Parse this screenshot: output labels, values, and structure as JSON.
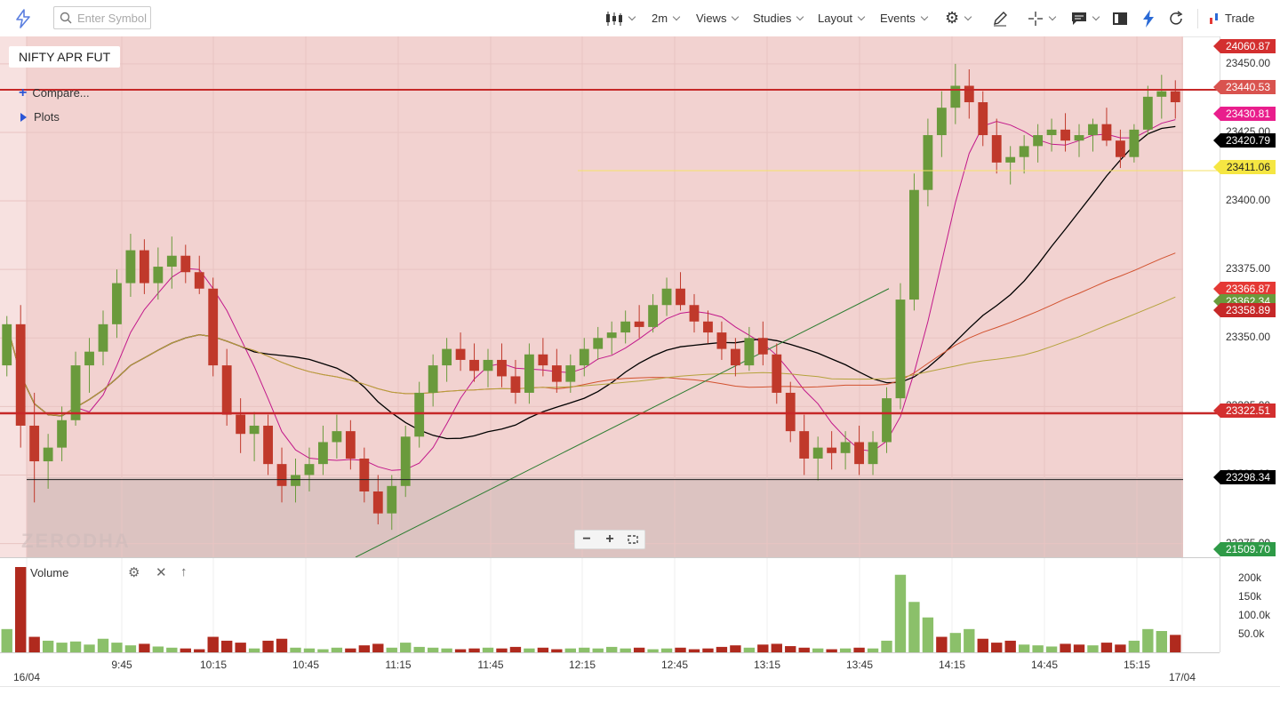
{
  "toolbar": {
    "search_placeholder": "Enter Symbol",
    "interval": "2m",
    "views": "Views",
    "studies": "Studies",
    "layout": "Layout",
    "events": "Events",
    "trade": "Trade"
  },
  "legend": {
    "symbol": "NIFTY APR FUT",
    "compare": "Compare...",
    "plots": "Plots"
  },
  "volume_pane": {
    "label": "Volume"
  },
  "watermark": "ZERODHA",
  "price_axis": {
    "ticks": [
      "23450.00",
      "23425.00",
      "23400.00",
      "23375.00",
      "23350.00",
      "23325.00",
      "23300.00",
      "23275.00"
    ],
    "tags": [
      {
        "label": "24060.87",
        "color": "#d32f2f"
      },
      {
        "label": "23440.53",
        "color": "#d9534f"
      },
      {
        "label": "23430.81",
        "color": "#e91e8c"
      },
      {
        "label": "23420.79",
        "color": "#000000"
      },
      {
        "label": "23411.06",
        "color": "#f5e642"
      },
      {
        "label": "23366.87",
        "color": "#e53935"
      },
      {
        "label": "23362.34",
        "color": "#6a9a3c"
      },
      {
        "label": "23358.89",
        "color": "#c62828"
      },
      {
        "label": "23322.51",
        "color": "#d32f2f"
      },
      {
        "label": "23298.34",
        "color": "#000000"
      },
      {
        "label": "21509.70",
        "color": "#2e9a47"
      }
    ]
  },
  "volume_axis": {
    "ticks": [
      "200k",
      "150k",
      "100.0k",
      "50.0k"
    ]
  },
  "time_axis": {
    "labels": [
      "16/04",
      "9:45",
      "10:15",
      "10:45",
      "11:15",
      "11:45",
      "12:15",
      "12:45",
      "13:15",
      "13:45",
      "14:15",
      "14:45",
      "15:15",
      "17/04"
    ]
  },
  "icons": {
    "logo": "lightning-logo-icon",
    "chart_type": "candles-icon",
    "settings": "gear-icon",
    "draw": "pencil-icon",
    "crosshair": "crosshair-icon",
    "alerts": "comment-icon",
    "panel": "panel-icon",
    "flash": "lightning-icon",
    "refresh": "refresh-icon"
  },
  "chart_data": {
    "type": "candlestick",
    "ylim": [
      23270,
      23460
    ],
    "bullish_color": "#6a9a3c",
    "bearish_color": "#c0392b",
    "ohlc": [
      [
        23340,
        23358,
        23336,
        23355
      ],
      [
        23355,
        23362,
        23310,
        23318
      ],
      [
        23318,
        23330,
        23290,
        23305
      ],
      [
        23305,
        23315,
        23295,
        23310
      ],
      [
        23310,
        23325,
        23305,
        23320
      ],
      [
        23320,
        23345,
        23318,
        23340
      ],
      [
        23340,
        23350,
        23330,
        23345
      ],
      [
        23345,
        23360,
        23340,
        23355
      ],
      [
        23355,
        23375,
        23350,
        23370
      ],
      [
        23370,
        23388,
        23365,
        23382
      ],
      [
        23382,
        23386,
        23366,
        23370
      ],
      [
        23370,
        23383,
        23364,
        23376
      ],
      [
        23376,
        23387,
        23368,
        23380
      ],
      [
        23380,
        23384,
        23370,
        23374
      ],
      [
        23374,
        23380,
        23366,
        23368
      ],
      [
        23368,
        23372,
        23336,
        23340
      ],
      [
        23340,
        23346,
        23318,
        23322
      ],
      [
        23322,
        23328,
        23308,
        23315
      ],
      [
        23315,
        23323,
        23305,
        23318
      ],
      [
        23318,
        23322,
        23300,
        23304
      ],
      [
        23304,
        23310,
        23290,
        23296
      ],
      [
        23296,
        23306,
        23290,
        23300
      ],
      [
        23300,
        23310,
        23294,
        23304
      ],
      [
        23304,
        23318,
        23300,
        23312
      ],
      [
        23312,
        23322,
        23306,
        23316
      ],
      [
        23316,
        23320,
        23302,
        23306
      ],
      [
        23306,
        23310,
        23290,
        23294
      ],
      [
        23294,
        23300,
        23282,
        23286
      ],
      [
        23286,
        23300,
        23280,
        23296
      ],
      [
        23296,
        23318,
        23292,
        23314
      ],
      [
        23314,
        23334,
        23310,
        23330
      ],
      [
        23330,
        23344,
        23325,
        23340
      ],
      [
        23340,
        23350,
        23334,
        23346
      ],
      [
        23346,
        23352,
        23338,
        23342
      ],
      [
        23342,
        23348,
        23334,
        23338
      ],
      [
        23338,
        23346,
        23332,
        23342
      ],
      [
        23342,
        23348,
        23332,
        23336
      ],
      [
        23336,
        23342,
        23326,
        23330
      ],
      [
        23330,
        23348,
        23326,
        23344
      ],
      [
        23344,
        23350,
        23336,
        23340
      ],
      [
        23340,
        23346,
        23330,
        23334
      ],
      [
        23334,
        23344,
        23330,
        23340
      ],
      [
        23340,
        23350,
        23336,
        23346
      ],
      [
        23346,
        23354,
        23342,
        23350
      ],
      [
        23350,
        23356,
        23344,
        23352
      ],
      [
        23352,
        23360,
        23348,
        23356
      ],
      [
        23356,
        23362,
        23350,
        23354
      ],
      [
        23354,
        23366,
        23352,
        23362
      ],
      [
        23362,
        23372,
        23358,
        23368
      ],
      [
        23368,
        23374,
        23360,
        23362
      ],
      [
        23362,
        23366,
        23352,
        23356
      ],
      [
        23356,
        23360,
        23348,
        23352
      ],
      [
        23352,
        23356,
        23342,
        23346
      ],
      [
        23346,
        23350,
        23336,
        23340
      ],
      [
        23340,
        23354,
        23338,
        23350
      ],
      [
        23350,
        23356,
        23340,
        23344
      ],
      [
        23344,
        23348,
        23326,
        23330
      ],
      [
        23330,
        23334,
        23312,
        23316
      ],
      [
        23316,
        23322,
        23300,
        23306
      ],
      [
        23306,
        23314,
        23298,
        23310
      ],
      [
        23310,
        23316,
        23302,
        23308
      ],
      [
        23308,
        23316,
        23302,
        23312
      ],
      [
        23312,
        23318,
        23300,
        23304
      ],
      [
        23304,
        23316,
        23300,
        23312
      ],
      [
        23312,
        23332,
        23308,
        23328
      ],
      [
        23328,
        23370,
        23324,
        23364
      ],
      [
        23364,
        23410,
        23360,
        23404
      ],
      [
        23404,
        23430,
        23398,
        23424
      ],
      [
        23424,
        23440,
        23416,
        23434
      ],
      [
        23434,
        23450,
        23428,
        23442
      ],
      [
        23442,
        23448,
        23430,
        23436
      ],
      [
        23436,
        23440,
        23420,
        23424
      ],
      [
        23424,
        23430,
        23410,
        23414
      ],
      [
        23414,
        23420,
        23406,
        23416
      ],
      [
        23416,
        23424,
        23410,
        23420
      ],
      [
        23420,
        23428,
        23414,
        23424
      ],
      [
        23424,
        23430,
        23418,
        23426
      ],
      [
        23426,
        23432,
        23418,
        23422
      ],
      [
        23422,
        23428,
        23416,
        23424
      ],
      [
        23424,
        23430,
        23418,
        23428
      ],
      [
        23428,
        23434,
        23420,
        23422
      ],
      [
        23422,
        23426,
        23412,
        23416
      ],
      [
        23416,
        23428,
        23414,
        23426
      ],
      [
        23426,
        23442,
        23424,
        23438
      ],
      [
        23438,
        23446,
        23430,
        23440
      ],
      [
        23440,
        23444,
        23430,
        23436
      ]
    ],
    "volume": [
      [
        60,
        1
      ],
      [
        220,
        0
      ],
      [
        40,
        0
      ],
      [
        30,
        1
      ],
      [
        25,
        1
      ],
      [
        28,
        1
      ],
      [
        20,
        1
      ],
      [
        35,
        1
      ],
      [
        25,
        1
      ],
      [
        18,
        1
      ],
      [
        22,
        0
      ],
      [
        15,
        1
      ],
      [
        12,
        1
      ],
      [
        10,
        0
      ],
      [
        8,
        0
      ],
      [
        40,
        0
      ],
      [
        30,
        0
      ],
      [
        25,
        0
      ],
      [
        10,
        1
      ],
      [
        30,
        0
      ],
      [
        35,
        0
      ],
      [
        12,
        1
      ],
      [
        10,
        1
      ],
      [
        8,
        1
      ],
      [
        12,
        1
      ],
      [
        10,
        0
      ],
      [
        18,
        0
      ],
      [
        22,
        0
      ],
      [
        12,
        1
      ],
      [
        25,
        1
      ],
      [
        14,
        1
      ],
      [
        12,
        1
      ],
      [
        10,
        1
      ],
      [
        8,
        0
      ],
      [
        10,
        0
      ],
      [
        12,
        1
      ],
      [
        10,
        0
      ],
      [
        14,
        0
      ],
      [
        10,
        1
      ],
      [
        12,
        0
      ],
      [
        8,
        0
      ],
      [
        10,
        1
      ],
      [
        12,
        1
      ],
      [
        10,
        1
      ],
      [
        14,
        1
      ],
      [
        10,
        1
      ],
      [
        12,
        0
      ],
      [
        8,
        1
      ],
      [
        10,
        1
      ],
      [
        12,
        0
      ],
      [
        8,
        0
      ],
      [
        10,
        0
      ],
      [
        14,
        0
      ],
      [
        18,
        0
      ],
      [
        12,
        1
      ],
      [
        20,
        0
      ],
      [
        22,
        0
      ],
      [
        16,
        0
      ],
      [
        12,
        0
      ],
      [
        10,
        1
      ],
      [
        8,
        0
      ],
      [
        10,
        1
      ],
      [
        12,
        0
      ],
      [
        10,
        1
      ],
      [
        30,
        1
      ],
      [
        200,
        1
      ],
      [
        130,
        1
      ],
      [
        90,
        1
      ],
      [
        40,
        0
      ],
      [
        50,
        1
      ],
      [
        60,
        1
      ],
      [
        35,
        0
      ],
      [
        25,
        0
      ],
      [
        30,
        0
      ],
      [
        20,
        1
      ],
      [
        18,
        1
      ],
      [
        15,
        1
      ],
      [
        22,
        0
      ],
      [
        20,
        0
      ],
      [
        18,
        1
      ],
      [
        25,
        0
      ],
      [
        20,
        0
      ],
      [
        30,
        1
      ],
      [
        60,
        1
      ],
      [
        55,
        1
      ],
      [
        45,
        0
      ]
    ]
  }
}
